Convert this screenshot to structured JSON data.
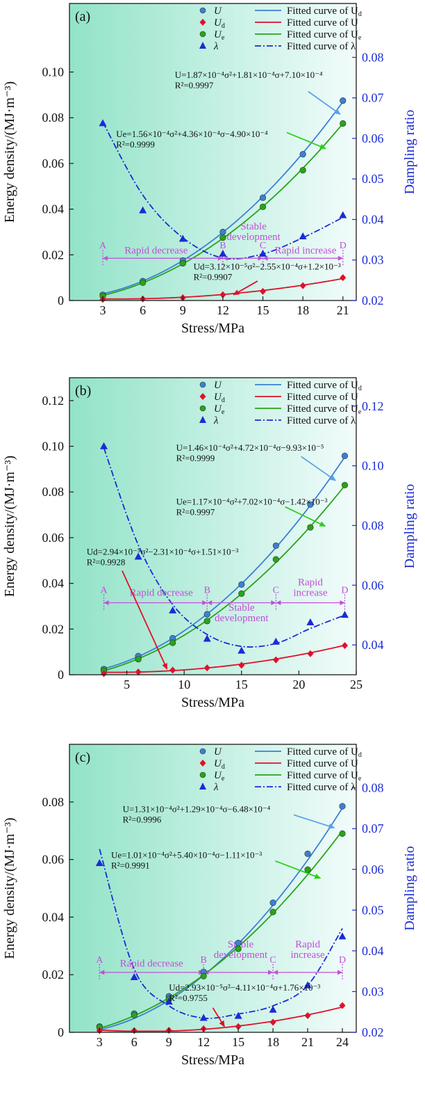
{
  "colors": {
    "U": "#3d7fd6",
    "Ud": "#e0102a",
    "Ue": "#2aa31a",
    "lambda": "#1a2bd6",
    "stage": "#c24fd6",
    "bg_left": "#92e3c8",
    "bg_right": "#f2fcfb",
    "right_axis": "#1a2bd6",
    "arrow_U": "#5aa0e8",
    "arrow_Ue": "#2bd01a",
    "arrow_Ud": "#e0102a"
  },
  "chart_data": [
    {
      "type": "line",
      "panel_label": "(a)",
      "xlabel": "Stress/MPa",
      "ylabel": "Energy density/(MJ·m⁻³)",
      "y2label": "Dampling ratio",
      "xlim": [
        0.5,
        22
      ],
      "ylim": [
        0,
        0.13
      ],
      "y2lim": [
        0.02,
        0.0933
      ],
      "xticks": [
        3,
        6,
        9,
        12,
        15,
        18,
        21
      ],
      "yticks": [
        0,
        0.02,
        0.04,
        0.06,
        0.08,
        0.1
      ],
      "ytick_labels": [
        "0",
        "0.02",
        "0.04",
        "0.06",
        "0.08",
        "0.10"
      ],
      "y2ticks": [
        0.02,
        0.03,
        0.04,
        0.05,
        0.06,
        0.07,
        0.08
      ],
      "y2tick_labels": [
        "0.02",
        "0.03",
        "0.04",
        "0.05",
        "0.06",
        "0.07",
        "0.08"
      ],
      "x": [
        3,
        6,
        9,
        12,
        15,
        18,
        21
      ],
      "series": [
        {
          "key": "U",
          "axis": "left",
          "marker": "circle",
          "values": [
            0.0025,
            0.0085,
            0.0175,
            0.03,
            0.045,
            0.064,
            0.0875
          ],
          "fit": {
            "a": 0.000187,
            "b": 0.000181,
            "c": 0.00071
          }
        },
        {
          "key": "Ue",
          "axis": "left",
          "marker": "circle",
          "values": [
            0.002,
            0.0078,
            0.0163,
            0.0275,
            0.041,
            0.057,
            0.0775
          ],
          "fit": {
            "a": 0.000156,
            "b": 0.000436,
            "c": -0.00049
          }
        },
        {
          "key": "Ud",
          "axis": "left",
          "marker": "diamond",
          "values": [
            0.0005,
            0.0007,
            0.0012,
            0.0025,
            0.004,
            0.0065,
            0.01
          ],
          "fit": {
            "a": 3.12e-05,
            "b": -0.000255,
            "c": 0.0012
          }
        },
        {
          "key": "lambda",
          "axis": "right",
          "marker": "triangle",
          "values": [
            0.0637,
            0.0422,
            0.0352,
            0.0315,
            0.0315,
            0.0358,
            0.041
          ],
          "fit_points": [
            [
              3,
              0.064
            ],
            [
              6,
              0.046
            ],
            [
              9,
              0.0355
            ],
            [
              12,
              0.0305
            ],
            [
              15,
              0.0315
            ],
            [
              18,
              0.0355
            ],
            [
              21,
              0.0405
            ]
          ]
        }
      ],
      "legend": [
        {
          "key": "U",
          "marker_label": "U",
          "line_label": "Fitted curve of U",
          "line_sub": "d"
        },
        {
          "key": "Ud",
          "marker_label": "U",
          "marker_sub": "d",
          "line_label": "Fitted curve of U"
        },
        {
          "key": "Ue",
          "marker_label": "U",
          "marker_sub": "e",
          "line_label": "Fitted curve of U",
          "line_sub": "e"
        },
        {
          "key": "lambda",
          "marker_label": "λ",
          "line_label": "Fitted curve of λ"
        }
      ],
      "stages": {
        "y": 0.0185,
        "points": [
          {
            "label": "A",
            "x": 3
          },
          {
            "label": "B",
            "x": 12
          },
          {
            "label": "C",
            "x": 15
          },
          {
            "label": "D",
            "x": 21
          }
        ],
        "segments": [
          {
            "text": [
              "Rapid decrease"
            ],
            "x": 7.0,
            "y": 0.0205
          },
          {
            "text": [
              "Stable",
              "development"
            ],
            "x": 14.3,
            "y": 0.0265
          },
          {
            "text": [
              "Rapid increase"
            ],
            "x": 18.2,
            "y": 0.0205
          }
        ]
      },
      "annotations": [
        {
          "series": "U",
          "lines": [
            "U=1.87×10⁻⁴σ²+1.81×10⁻⁴σ+7.10×10⁻⁴",
            "R²=0.9997"
          ],
          "x": 8.4,
          "y": 0.0975,
          "arrow_to": [
            20.8,
            0.0815
          ],
          "arrow_from": [
            18.4,
            0.0915
          ]
        },
        {
          "series": "Ue",
          "lines": [
            "Ue=1.56×10⁻⁴σ²+4.36×10⁻⁴σ−4.90×10⁻⁴",
            "R²=0.9999"
          ],
          "x": 4.0,
          "y": 0.0715,
          "arrow_to": [
            19.7,
            0.0665
          ],
          "arrow_from": [
            16.8,
            0.0735
          ]
        },
        {
          "series": "Ud",
          "lines": [
            "Ud=3.12×10⁻⁵σ²−2.55×10⁻⁴σ+1.2×10⁻³",
            "R²=0.9907"
          ],
          "x": 9.8,
          "y": 0.0135,
          "arrow_to": [
            12.8,
            0.0025
          ],
          "arrow_from": [
            14.6,
            0.0085
          ]
        }
      ]
    },
    {
      "type": "line",
      "panel_label": "(b)",
      "xlabel": "Stress/MPa",
      "ylabel": "Energy density/(MJ·m⁻³)",
      "y2label": "Dampling ratio",
      "xlim": [
        0,
        25
      ],
      "ylim": [
        0,
        0.13
      ],
      "y2lim": [
        0.03,
        0.1295
      ],
      "xticks": [
        5,
        10,
        15,
        20,
        25
      ],
      "yticks": [
        0,
        0.02,
        0.04,
        0.06,
        0.08,
        0.1,
        0.12
      ],
      "ytick_labels": [
        "0",
        "0.02",
        "0.04",
        "0.06",
        "0.08",
        "0.10",
        "0.12"
      ],
      "y2ticks": [
        0.04,
        0.06,
        0.08,
        0.1,
        0.12
      ],
      "y2tick_labels": [
        "0.04",
        "0.06",
        "0.08",
        "0.10",
        "0.12"
      ],
      "x": [
        3,
        6,
        9,
        12,
        15,
        18,
        21,
        24
      ],
      "series": [
        {
          "key": "U",
          "axis": "left",
          "marker": "circle",
          "values": [
            0.0025,
            0.0082,
            0.016,
            0.0265,
            0.0395,
            0.0565,
            0.0745,
            0.0958
          ],
          "fit": {
            "a": 0.000146,
            "b": 0.000472,
            "c": -9.93e-05
          }
        },
        {
          "key": "Ue",
          "axis": "left",
          "marker": "circle",
          "values": [
            0.0018,
            0.0068,
            0.014,
            0.0235,
            0.0355,
            0.0505,
            0.0645,
            0.083
          ],
          "fit": {
            "a": 0.000117,
            "b": 0.000702,
            "c": -0.00142
          }
        },
        {
          "key": "Ud",
          "axis": "left",
          "marker": "diamond",
          "values": [
            0.0005,
            0.0012,
            0.002,
            0.003,
            0.0042,
            0.0065,
            0.0092,
            0.0128
          ],
          "fit": {
            "a": 2.94e-05,
            "b": -0.000231,
            "c": 0.00151
          }
        },
        {
          "key": "lambda",
          "axis": "right",
          "marker": "triangle",
          "values": [
            0.1065,
            0.0695,
            0.0515,
            0.042,
            0.038,
            0.041,
            0.0475,
            0.05
          ],
          "fit_points": [
            [
              3,
              0.106
            ],
            [
              6,
              0.0735
            ],
            [
              9,
              0.0535
            ],
            [
              12,
              0.0435
            ],
            [
              15,
              0.0395
            ],
            [
              18,
              0.0405
            ],
            [
              21,
              0.0455
            ],
            [
              24,
              0.05
            ]
          ]
        }
      ],
      "legend": [
        {
          "key": "U",
          "marker_label": "U",
          "line_label": "Fitted curve of U",
          "line_sub": "d"
        },
        {
          "key": "Ud",
          "marker_label": "U",
          "marker_sub": "d",
          "line_label": "Fitted curve of U"
        },
        {
          "key": "Ue",
          "marker_label": "U",
          "marker_sub": "e",
          "line_label": "Fitted curve of U",
          "line_sub": "e"
        },
        {
          "key": "lambda",
          "marker_label": "λ",
          "line_label": "Fitted curve of λ"
        }
      ],
      "stages": {
        "y": 0.0315,
        "points": [
          {
            "label": "A",
            "x": 3
          },
          {
            "label": "B",
            "x": 12
          },
          {
            "label": "C",
            "x": 18
          },
          {
            "label": "D",
            "x": 24
          }
        ],
        "segments": [
          {
            "text": [
              "Rapid decrease"
            ],
            "x": 8.0,
            "y": 0.0345
          },
          {
            "text": [
              "Stable",
              "development"
            ],
            "x": 15.0,
            "y": 0.0235
          },
          {
            "text": [
              "Rapid",
              "increase"
            ],
            "x": 21.0,
            "y": 0.0345
          }
        ]
      },
      "annotations": [
        {
          "series": "U",
          "lines": [
            "U=1.46×10⁻⁴σ²+4.72×10⁻⁴σ−9.93×10⁻⁵",
            "R²=0.9999"
          ],
          "x": 9.3,
          "y": 0.098,
          "arrow_to": [
            23.2,
            0.085
          ],
          "arrow_from": [
            20.2,
            0.0955
          ]
        },
        {
          "series": "Ue",
          "lines": [
            "Ue=1.17×10⁻⁴σ²+7.02×10⁻⁴σ−1.42×10⁻³",
            "R²=0.9997"
          ],
          "x": 9.3,
          "y": 0.0745,
          "arrow_to": [
            22.3,
            0.065
          ],
          "arrow_from": [
            18.8,
            0.0735
          ]
        },
        {
          "series": "Ud",
          "lines": [
            "Ud=2.94×10⁻⁵σ²−2.31×10⁻⁴σ+1.51×10⁻³",
            "R²=0.9928"
          ],
          "x": 1.5,
          "y": 0.0525,
          "arrow_to": [
            8.5,
            0.0025
          ],
          "arrow_from": [
            4.6,
            0.0455
          ]
        }
      ]
    },
    {
      "type": "line",
      "panel_label": "(c)",
      "xlabel": "Stress/MPa",
      "ylabel": "Energy density/(MJ·m⁻³)",
      "y2label": "Dampling ratio",
      "xlim": [
        0.4,
        25.2
      ],
      "ylim": [
        0,
        0.1
      ],
      "y2lim": [
        0.02,
        0.0907
      ],
      "xticks": [
        3,
        6,
        9,
        12,
        15,
        18,
        21,
        24
      ],
      "yticks": [
        0,
        0.02,
        0.04,
        0.06,
        0.08
      ],
      "ytick_labels": [
        "0",
        "0.02",
        "0.04",
        "0.06",
        "0.08"
      ],
      "y2ticks": [
        0.02,
        0.03,
        0.04,
        0.05,
        0.06,
        0.07,
        0.08
      ],
      "y2tick_labels": [
        "0.02",
        "0.03",
        "0.04",
        "0.05",
        "0.06",
        "0.07",
        "0.08"
      ],
      "x": [
        3,
        6,
        9,
        12,
        15,
        18,
        21,
        24
      ],
      "series": [
        {
          "key": "U",
          "axis": "left",
          "marker": "circle",
          "values": [
            0.002,
            0.0065,
            0.0125,
            0.021,
            0.031,
            0.045,
            0.062,
            0.0785
          ],
          "fit": {
            "a": 0.000131,
            "b": 0.000129,
            "c": -0.000648
          }
        },
        {
          "key": "Ue",
          "axis": "left",
          "marker": "circle",
          "values": [
            0.0018,
            0.006,
            0.0115,
            0.0195,
            0.029,
            0.0418,
            0.0565,
            0.069
          ],
          "fit": {
            "a": 0.000101,
            "b": 0.00054,
            "c": -0.00111
          }
        },
        {
          "key": "Ud",
          "axis": "left",
          "marker": "diamond",
          "values": [
            0.0006,
            0.0006,
            0.0007,
            0.0012,
            0.002,
            0.0035,
            0.0058,
            0.0093
          ],
          "fit": {
            "a": 2.93e-05,
            "b": -0.000411,
            "c": 0.00176
          }
        },
        {
          "key": "lambda",
          "axis": "right",
          "marker": "triangle",
          "values": [
            0.0615,
            0.0335,
            0.0275,
            0.0235,
            0.024,
            0.0255,
            0.0315,
            0.0435
          ],
          "fit_points": [
            [
              3,
              0.065
            ],
            [
              6,
              0.0355
            ],
            [
              9,
              0.0265
            ],
            [
              12,
              0.0235
            ],
            [
              15,
              0.0245
            ],
            [
              18,
              0.0265
            ],
            [
              21,
              0.0315
            ],
            [
              24,
              0.0455
            ]
          ]
        }
      ],
      "legend": [
        {
          "key": "U",
          "marker_label": "U",
          "line_label": "Fitted curve of U",
          "line_sub": "d"
        },
        {
          "key": "Ud",
          "marker_label": "U",
          "marker_sub": "d",
          "line_label": "Fitted curve of U"
        },
        {
          "key": "Ue",
          "marker_label": "U",
          "marker_sub": "e",
          "line_label": "Fitted curve of U",
          "line_sub": "e"
        },
        {
          "key": "lambda",
          "marker_label": "λ",
          "line_label": "Fitted curve of λ"
        }
      ],
      "stages": {
        "y": 0.0208,
        "points": [
          {
            "label": "A",
            "x": 3
          },
          {
            "label": "B",
            "x": 12
          },
          {
            "label": "C",
            "x": 18
          },
          {
            "label": "D",
            "x": 24
          }
        ],
        "segments": [
          {
            "text": [
              "Rapid decrease"
            ],
            "x": 7.5,
            "y": 0.0228
          },
          {
            "text": [
              "Stable",
              "development"
            ],
            "x": 15.2,
            "y": 0.0258
          },
          {
            "text": [
              "Rapid",
              "increase"
            ],
            "x": 21.0,
            "y": 0.0258
          }
        ]
      },
      "annotations": [
        {
          "series": "U",
          "lines": [
            "U=1.31×10⁻⁴σ²+1.29×10⁻⁴σ−6.48×10⁻⁴",
            "R²=0.9996"
          ],
          "x": 5.0,
          "y": 0.0765,
          "arrow_to": [
            23.3,
            0.071
          ],
          "arrow_from": [
            19.8,
            0.0755
          ]
        },
        {
          "series": "Ue",
          "lines": [
            "Ue=1.01×10⁻⁴σ²+5.40×10⁻⁴σ−1.11×10⁻³",
            "R²=0.9991"
          ],
          "x": 4.0,
          "y": 0.0605,
          "arrow_to": [
            22.1,
            0.0535
          ],
          "arrow_from": [
            18.2,
            0.0595
          ]
        },
        {
          "series": "Ud",
          "lines": [
            "Ud=2.93×10⁻⁵σ²−4.11×10⁻⁴σ+1.76×10⁻³",
            "R²=0.9755"
          ],
          "x": 9.0,
          "y": 0.0145,
          "arrow_to": [
            13.8,
            0.002
          ],
          "arrow_from": [
            12.8,
            0.0085
          ]
        }
      ]
    }
  ]
}
